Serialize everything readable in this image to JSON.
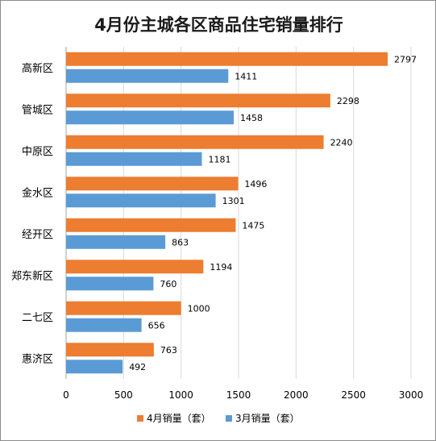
{
  "chart_data": {
    "type": "bar",
    "orientation": "horizontal",
    "title": "4月份主城各区商品住宅销量排行",
    "categories": [
      "高新区",
      "管城区",
      "中原区",
      "金水区",
      "经开区",
      "郑东新区",
      "二七区",
      "惠济区"
    ],
    "series": [
      {
        "name": "4月销量（套）",
        "color": "#ED7D31",
        "values": [
          2797,
          2298,
          2240,
          1496,
          1475,
          1194,
          1000,
          763
        ]
      },
      {
        "name": "3月销量（套）",
        "color": "#5B9BD5",
        "values": [
          1411,
          1458,
          1181,
          1301,
          863,
          760,
          656,
          492
        ]
      }
    ],
    "xlim": [
      0,
      3000
    ],
    "xticks": [
      "0",
      "500",
      "1000",
      "1500",
      "2000",
      "2500",
      "3000"
    ],
    "grid": true,
    "legend_position": "bottom"
  }
}
